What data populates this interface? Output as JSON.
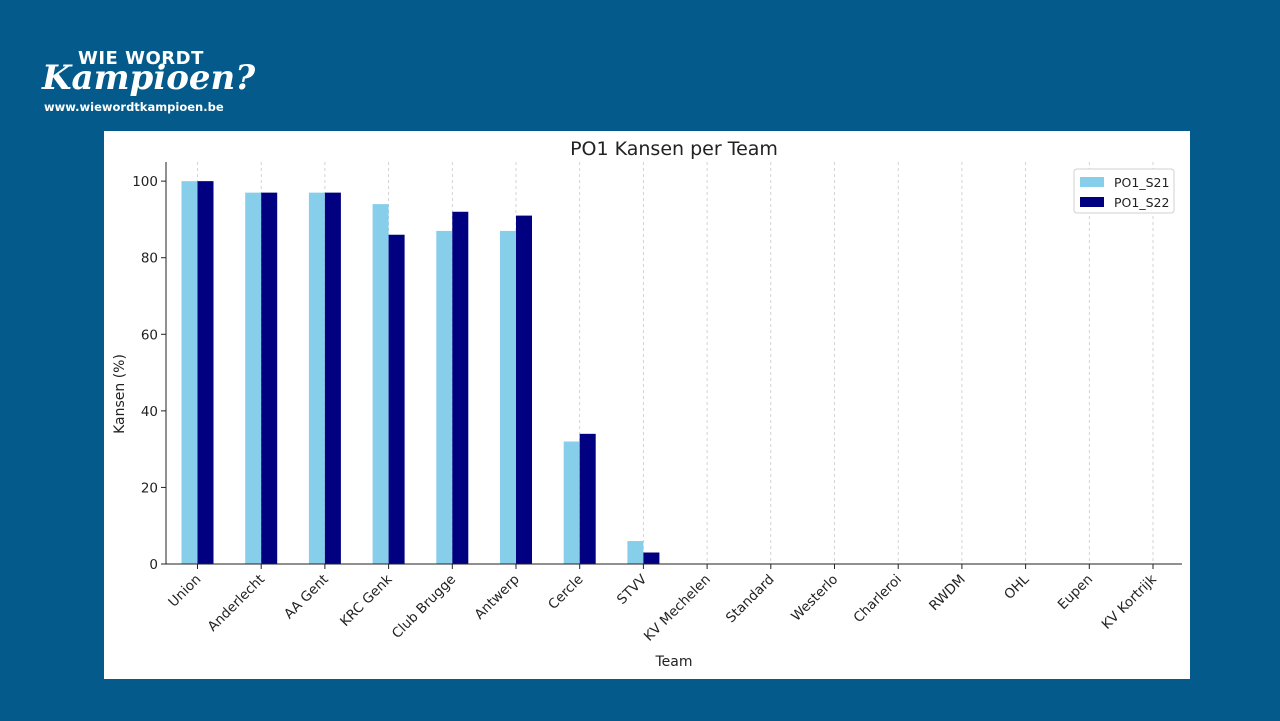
{
  "brand": {
    "title_top": "WIE WORDT",
    "title_script": "Kampioen?",
    "url": "www.wiewordtkampioen.be"
  },
  "chart_data": {
    "type": "bar",
    "title": "PO1 Kansen per Team",
    "xlabel": "Team",
    "ylabel": "Kansen (%)",
    "ylim": [
      0,
      105
    ],
    "yticks": [
      0,
      20,
      40,
      60,
      80,
      100
    ],
    "grid": "vertical dashed",
    "legend_position": "top-right",
    "categories": [
      "Union",
      "Anderlecht",
      "AA Gent",
      "KRC Genk",
      "Club Brugge",
      "Antwerp",
      "Cercle",
      "STVV",
      "KV Mechelen",
      "Standard",
      "Westerlo",
      "Charleroi",
      "RWDM",
      "OHL",
      "Eupen",
      "KV Kortrijk"
    ],
    "series": [
      {
        "name": "PO1_S21",
        "color": "#87ceeb",
        "values": [
          100,
          97,
          97,
          94,
          87,
          87,
          32,
          6,
          0,
          0,
          0,
          0,
          0,
          0,
          0,
          0
        ]
      },
      {
        "name": "PO1_S22",
        "color": "#000080",
        "values": [
          100,
          97,
          97,
          86,
          92,
          91,
          34,
          3,
          0,
          0,
          0,
          0,
          0,
          0,
          0,
          0
        ]
      }
    ]
  }
}
